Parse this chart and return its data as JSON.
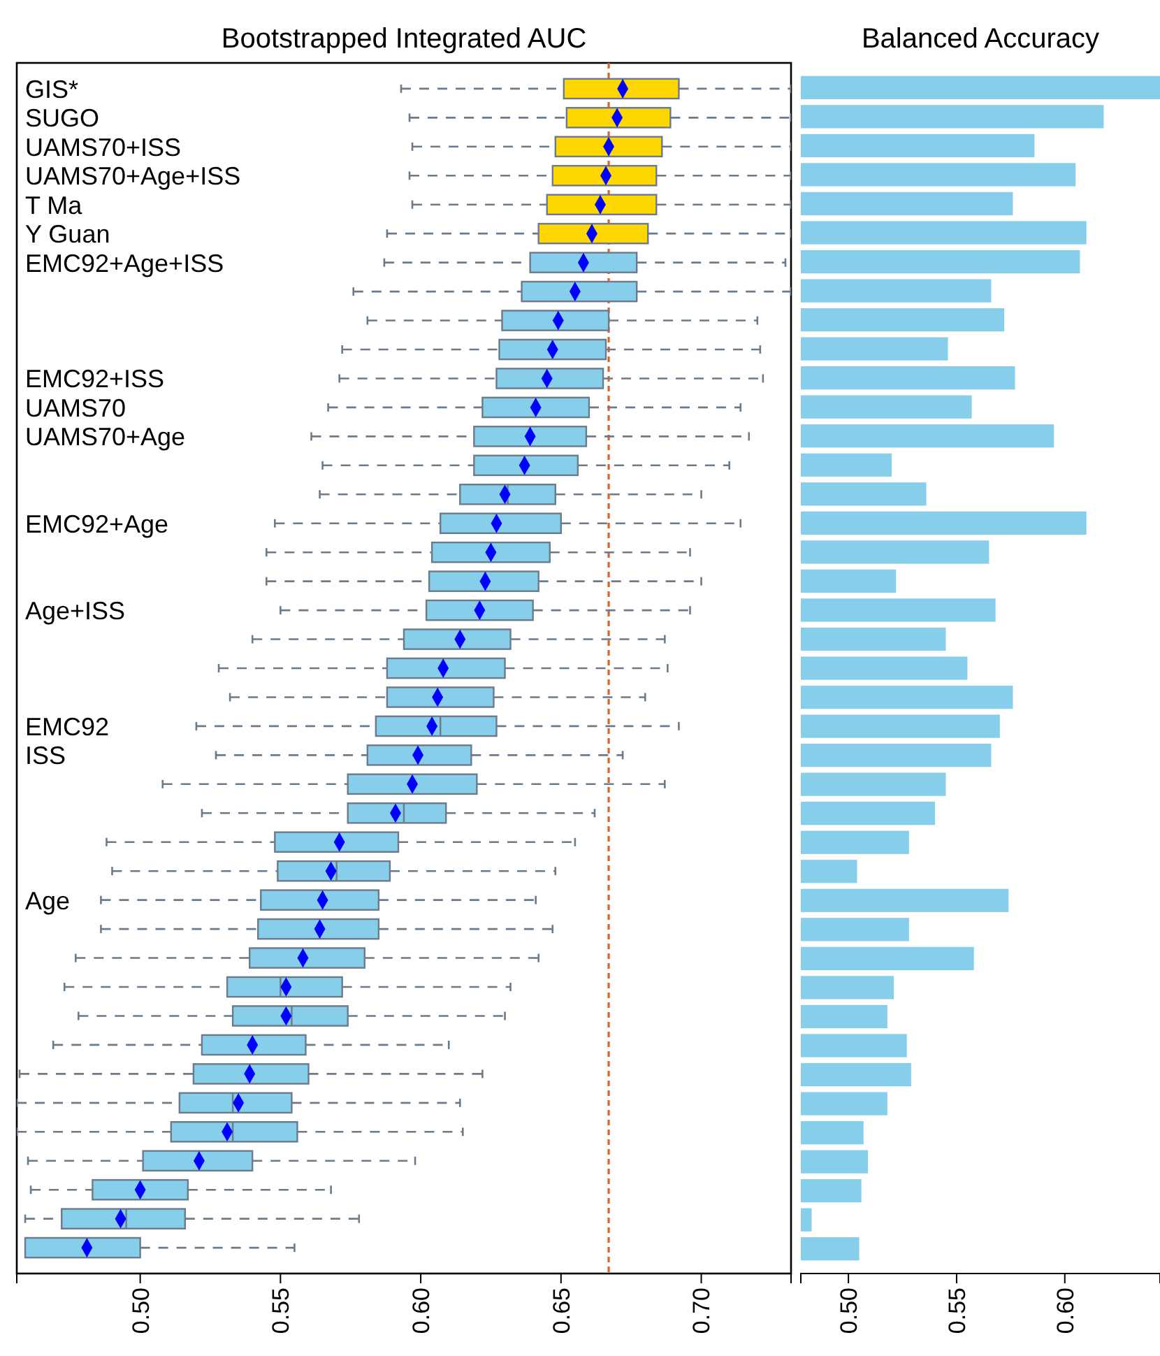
{
  "chart_data": [
    {
      "type": "box",
      "orientation": "horizontal",
      "title": "Bootstrapped Integrated AUC",
      "marker": "diamond",
      "categories": [
        "GIS*",
        "SUGO",
        "UAMS70+ISS",
        "UAMS70+Age+ISS",
        "T Ma",
        "Y Guan",
        "EMC92+Age+ISS",
        null,
        null,
        null,
        "EMC92+ISS",
        "UAMS70",
        "UAMS70+Age",
        null,
        null,
        "EMC92+Age",
        null,
        null,
        "Age+ISS",
        null,
        null,
        null,
        "EMC92",
        "ISS",
        null,
        null,
        null,
        null,
        "Age",
        null,
        null,
        null,
        null,
        null,
        null,
        null,
        null,
        null,
        null,
        null,
        null
      ],
      "boxes": [
        {
          "low": 0.593,
          "q1": 0.651,
          "median": 0.672,
          "q3": 0.692,
          "high": 0.732,
          "mean": 0.672
        },
        {
          "low": 0.596,
          "q1": 0.652,
          "median": 0.67,
          "q3": 0.689,
          "high": 0.732,
          "mean": 0.67
        },
        {
          "low": 0.597,
          "q1": 0.648,
          "median": 0.667,
          "q3": 0.686,
          "high": 0.732,
          "mean": 0.667
        },
        {
          "low": 0.596,
          "q1": 0.647,
          "median": 0.666,
          "q3": 0.684,
          "high": 0.732,
          "mean": 0.666
        },
        {
          "low": 0.597,
          "q1": 0.645,
          "median": 0.664,
          "q3": 0.684,
          "high": 0.732,
          "mean": 0.664
        },
        {
          "low": 0.588,
          "q1": 0.642,
          "median": 0.661,
          "q3": 0.681,
          "high": 0.732,
          "mean": 0.661
        },
        {
          "low": 0.587,
          "q1": 0.639,
          "median": 0.658,
          "q3": 0.677,
          "high": 0.73,
          "mean": 0.658
        },
        {
          "low": 0.576,
          "q1": 0.636,
          "median": 0.655,
          "q3": 0.677,
          "high": 0.732,
          "mean": 0.655
        },
        {
          "low": 0.581,
          "q1": 0.629,
          "median": 0.649,
          "q3": 0.667,
          "high": 0.72,
          "mean": 0.649
        },
        {
          "low": 0.572,
          "q1": 0.628,
          "median": 0.647,
          "q3": 0.666,
          "high": 0.721,
          "mean": 0.647
        },
        {
          "low": 0.571,
          "q1": 0.627,
          "median": 0.645,
          "q3": 0.665,
          "high": 0.722,
          "mean": 0.645
        },
        {
          "low": 0.567,
          "q1": 0.622,
          "median": 0.641,
          "q3": 0.66,
          "high": 0.714,
          "mean": 0.641
        },
        {
          "low": 0.561,
          "q1": 0.619,
          "median": 0.639,
          "q3": 0.659,
          "high": 0.717,
          "mean": 0.639
        },
        {
          "low": 0.565,
          "q1": 0.619,
          "median": 0.637,
          "q3": 0.656,
          "high": 0.71,
          "mean": 0.637
        },
        {
          "low": 0.564,
          "q1": 0.614,
          "median": 0.631,
          "q3": 0.648,
          "high": 0.7,
          "mean": 0.63
        },
        {
          "low": 0.548,
          "q1": 0.607,
          "median": 0.627,
          "q3": 0.65,
          "high": 0.714,
          "mean": 0.627
        },
        {
          "low": 0.545,
          "q1": 0.604,
          "median": 0.625,
          "q3": 0.646,
          "high": 0.696,
          "mean": 0.625
        },
        {
          "low": 0.545,
          "q1": 0.603,
          "median": 0.623,
          "q3": 0.642,
          "high": 0.7,
          "mean": 0.623
        },
        {
          "low": 0.55,
          "q1": 0.602,
          "median": 0.621,
          "q3": 0.64,
          "high": 0.696,
          "mean": 0.621
        },
        {
          "low": 0.54,
          "q1": 0.594,
          "median": 0.614,
          "q3": 0.632,
          "high": 0.687,
          "mean": 0.614
        },
        {
          "low": 0.528,
          "q1": 0.588,
          "median": 0.608,
          "q3": 0.63,
          "high": 0.688,
          "mean": 0.608
        },
        {
          "low": 0.532,
          "q1": 0.588,
          "median": 0.606,
          "q3": 0.626,
          "high": 0.68,
          "mean": 0.606
        },
        {
          "low": 0.52,
          "q1": 0.584,
          "median": 0.607,
          "q3": 0.627,
          "high": 0.692,
          "mean": 0.604
        },
        {
          "low": 0.527,
          "q1": 0.581,
          "median": 0.599,
          "q3": 0.618,
          "high": 0.672,
          "mean": 0.599
        },
        {
          "low": 0.508,
          "q1": 0.574,
          "median": 0.597,
          "q3": 0.62,
          "high": 0.687,
          "mean": 0.597
        },
        {
          "low": 0.522,
          "q1": 0.574,
          "median": 0.594,
          "q3": 0.609,
          "high": 0.662,
          "mean": 0.591
        },
        {
          "low": 0.488,
          "q1": 0.548,
          "median": 0.571,
          "q3": 0.592,
          "high": 0.655,
          "mean": 0.571
        },
        {
          "low": 0.49,
          "q1": 0.549,
          "median": 0.57,
          "q3": 0.589,
          "high": 0.648,
          "mean": 0.568
        },
        {
          "low": 0.486,
          "q1": 0.543,
          "median": 0.565,
          "q3": 0.585,
          "high": 0.641,
          "mean": 0.565
        },
        {
          "low": 0.486,
          "q1": 0.542,
          "median": 0.564,
          "q3": 0.585,
          "high": 0.647,
          "mean": 0.564
        },
        {
          "low": 0.477,
          "q1": 0.539,
          "median": 0.558,
          "q3": 0.58,
          "high": 0.642,
          "mean": 0.558
        },
        {
          "low": 0.473,
          "q1": 0.531,
          "median": 0.55,
          "q3": 0.572,
          "high": 0.632,
          "mean": 0.552
        },
        {
          "low": 0.478,
          "q1": 0.533,
          "median": 0.554,
          "q3": 0.574,
          "high": 0.63,
          "mean": 0.552
        },
        {
          "low": 0.469,
          "q1": 0.522,
          "median": 0.54,
          "q3": 0.559,
          "high": 0.61,
          "mean": 0.54
        },
        {
          "low": 0.457,
          "q1": 0.519,
          "median": 0.539,
          "q3": 0.56,
          "high": 0.622,
          "mean": 0.539
        },
        {
          "low": 0.456,
          "q1": 0.514,
          "median": 0.533,
          "q3": 0.554,
          "high": 0.614,
          "mean": 0.535
        },
        {
          "low": 0.456,
          "q1": 0.511,
          "median": 0.533,
          "q3": 0.556,
          "high": 0.615,
          "mean": 0.531
        },
        {
          "low": 0.46,
          "q1": 0.501,
          "median": 0.521,
          "q3": 0.54,
          "high": 0.598,
          "mean": 0.521
        },
        {
          "low": 0.461,
          "q1": 0.483,
          "median": 0.5,
          "q3": 0.517,
          "high": 0.568,
          "mean": 0.5
        },
        {
          "low": 0.459,
          "q1": 0.472,
          "median": 0.495,
          "q3": 0.516,
          "high": 0.578,
          "mean": 0.493
        },
        {
          "low": null,
          "q1": 0.459,
          "median": 0.481,
          "q3": 0.5,
          "high": 0.555,
          "mean": 0.481
        }
      ],
      "colors": [
        "#ffd700",
        "#ffd700",
        "#ffd700",
        "#ffd700",
        "#ffd700",
        "#ffd700",
        "#87ceeb",
        "#87ceeb",
        "#87ceeb",
        "#87ceeb",
        "#87ceeb",
        "#87ceeb",
        "#87ceeb",
        "#87ceeb",
        "#87ceeb",
        "#87ceeb",
        "#87ceeb",
        "#87ceeb",
        "#87ceeb",
        "#87ceeb",
        "#87ceeb",
        "#87ceeb",
        "#87ceeb",
        "#87ceeb",
        "#87ceeb",
        "#87ceeb",
        "#87ceeb",
        "#87ceeb",
        "#87ceeb",
        "#87ceeb",
        "#87ceeb",
        "#87ceeb",
        "#87ceeb",
        "#87ceeb",
        "#87ceeb",
        "#87ceeb",
        "#87ceeb",
        "#87ceeb",
        "#87ceeb",
        "#87ceeb",
        "#87ceeb"
      ],
      "xlim": [
        0.456,
        0.732
      ],
      "xticks": [
        {
          "value": 0.5,
          "label": "0.50"
        },
        {
          "value": 0.55,
          "label": "0.55"
        },
        {
          "value": 0.6,
          "label": "0.60"
        },
        {
          "value": 0.65,
          "label": "0.65"
        },
        {
          "value": 0.7,
          "label": "0.70"
        }
      ],
      "ref_lines": [
        {
          "axis": "x",
          "value": 0.667,
          "color": "#e0602a",
          "line_style": "dashed"
        }
      ]
    },
    {
      "type": "bar",
      "orientation": "horizontal",
      "title": "Balanced Accuracy",
      "color": "#87ceeb",
      "categories": [
        null,
        null,
        null,
        null,
        null,
        null,
        null,
        null,
        null,
        null,
        null,
        null,
        null,
        null,
        null,
        null,
        null,
        null,
        null,
        null,
        null,
        null,
        null,
        null,
        null,
        null,
        null,
        null,
        null,
        null,
        null,
        null,
        null,
        null,
        null,
        null,
        null,
        null,
        null,
        null,
        null
      ],
      "values": [
        0.644,
        0.618,
        0.586,
        0.605,
        0.576,
        0.61,
        0.607,
        0.566,
        0.572,
        0.546,
        0.577,
        0.557,
        0.595,
        0.52,
        0.536,
        0.61,
        0.565,
        0.522,
        0.568,
        0.545,
        0.555,
        0.576,
        0.57,
        0.566,
        0.545,
        0.54,
        0.528,
        0.504,
        0.574,
        0.528,
        0.558,
        0.521,
        0.518,
        0.527,
        0.529,
        0.518,
        0.507,
        0.509,
        0.506,
        0.483,
        0.505
      ],
      "xlim": [
        0.478,
        0.644
      ],
      "xticks": [
        {
          "value": 0.5,
          "label": "0.50"
        },
        {
          "value": 0.55,
          "label": "0.55"
        },
        {
          "value": 0.6,
          "label": "0.60"
        }
      ]
    }
  ]
}
